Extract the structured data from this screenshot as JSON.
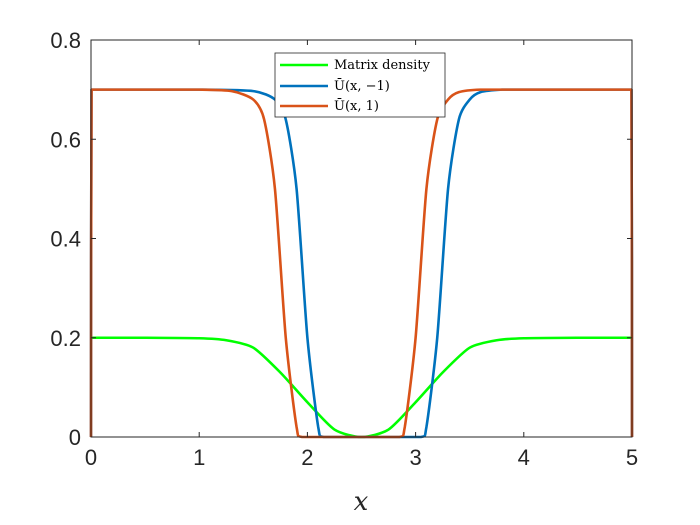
{
  "chart_data": {
    "type": "line",
    "xlabel": "x",
    "ylabel": "",
    "xlim": [
      0,
      5
    ],
    "ylim": [
      0,
      0.8
    ],
    "x_ticks": [
      0,
      1,
      2,
      3,
      4,
      5
    ],
    "x_tick_labels": [
      "0",
      "1",
      "2",
      "3",
      "4",
      "5"
    ],
    "y_ticks": [
      0,
      0.2,
      0.4,
      0.6,
      0.8
    ],
    "y_tick_labels": [
      "0",
      "0.2",
      "0.4",
      "0.6",
      "0.8"
    ],
    "grid": false,
    "legend_position": "top-center",
    "series": [
      {
        "name": "Matrix density",
        "color": "#00ff00",
        "x": [
          0,
          0.5,
          1.0,
          1.25,
          1.5,
          1.75,
          2.0,
          2.25,
          2.5,
          2.75,
          3.0,
          3.25,
          3.5,
          3.75,
          4.0,
          4.5,
          5.0
        ],
        "y": [
          0.2,
          0.2,
          0.199,
          0.195,
          0.18,
          0.13,
          0.07,
          0.015,
          0.0,
          0.015,
          0.07,
          0.13,
          0.18,
          0.195,
          0.199,
          0.2,
          0.2
        ]
      },
      {
        "name": "Ū(x, −1)",
        "color": "#0072bd",
        "x": [
          0,
          0.005,
          0.5,
          1.0,
          1.5,
          1.7,
          1.8,
          1.9,
          2.0,
          2.1,
          2.15,
          2.5,
          3.05,
          3.1,
          3.2,
          3.3,
          3.4,
          3.5,
          3.6,
          3.8,
          4.0,
          4.5,
          4.995,
          5.0
        ],
        "y": [
          0,
          0.7,
          0.7,
          0.7,
          0.697,
          0.68,
          0.64,
          0.5,
          0.2,
          0.02,
          0,
          0,
          0,
          0.02,
          0.2,
          0.5,
          0.64,
          0.68,
          0.695,
          0.7,
          0.7,
          0.7,
          0.7,
          0
        ]
      },
      {
        "name": "Ū(x, 1)",
        "color": "#d95319",
        "x": [
          0,
          0.005,
          0.5,
          1.0,
          1.3,
          1.5,
          1.6,
          1.7,
          1.8,
          1.9,
          1.95,
          2.5,
          2.85,
          2.9,
          3.0,
          3.1,
          3.2,
          3.3,
          3.4,
          3.6,
          4.0,
          4.5,
          4.995,
          5.0
        ],
        "y": [
          0,
          0.7,
          0.7,
          0.7,
          0.697,
          0.68,
          0.64,
          0.5,
          0.2,
          0.02,
          0,
          0,
          0,
          0.02,
          0.2,
          0.5,
          0.64,
          0.68,
          0.695,
          0.7,
          0.7,
          0.7,
          0.7,
          0
        ]
      }
    ],
    "legend": {
      "entries": [
        {
          "label": "Matrix density",
          "color": "#00ff00"
        },
        {
          "label": "Ū(x, −1)",
          "color": "#0072bd"
        },
        {
          "label": "Ū(x, 1)",
          "color": "#d95319"
        }
      ]
    }
  }
}
